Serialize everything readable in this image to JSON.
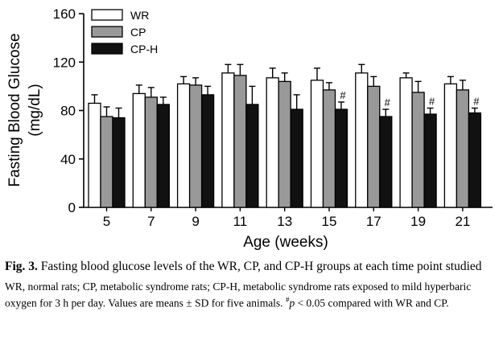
{
  "chart_data": {
    "type": "bar",
    "ylabel_line1": "Fasting Blood Glucose",
    "ylabel_line2": "(mg/dL)",
    "xlabel": "Age (weeks)",
    "ylim": [
      0,
      160
    ],
    "yticks": [
      0,
      40,
      80,
      120,
      160
    ],
    "categories": [
      "5",
      "7",
      "9",
      "11",
      "13",
      "15",
      "17",
      "19",
      "21"
    ],
    "legend_position": "top-left",
    "series": [
      {
        "name": "WR",
        "color": "#ffffff",
        "values": [
          86,
          94,
          102,
          111,
          107,
          105,
          111,
          107,
          102
        ],
        "sd": [
          7,
          7,
          6,
          7,
          8,
          10,
          7,
          4,
          6
        ]
      },
      {
        "name": "CP",
        "color": "#999999",
        "values": [
          75,
          91,
          101,
          109,
          104,
          97,
          100,
          95,
          97
        ],
        "sd": [
          8,
          8,
          6,
          9,
          7,
          6,
          8,
          9,
          8
        ]
      },
      {
        "name": "CP-H",
        "color": "#111111",
        "values": [
          74,
          85,
          93,
          85,
          81,
          81,
          75,
          77,
          78
        ],
        "sd": [
          8,
          6,
          7,
          15,
          12,
          6,
          6,
          5,
          4
        ]
      }
    ],
    "significance": [
      {
        "category": "15",
        "series": "CP-H",
        "mark": "#"
      },
      {
        "category": "17",
        "series": "CP-H",
        "mark": "#"
      },
      {
        "category": "19",
        "series": "CP-H",
        "mark": "#"
      },
      {
        "category": "21",
        "series": "CP-H",
        "mark": "#"
      }
    ]
  },
  "caption": {
    "label": "Fig. 3.",
    "title": "Fasting blood glucose levels of the WR, CP, and CP-H groups at each time point studied",
    "note_before": "WR, normal rats; CP, metabolic syndrome rats; CP-H, metabolic syndrome rats exposed to mild hyperbaric oxygen for 3 h per day. Values are means ± SD for five animals. ",
    "note_mark": "#",
    "note_p": "p",
    "note_after": " < 0.05 compared with WR and CP."
  }
}
